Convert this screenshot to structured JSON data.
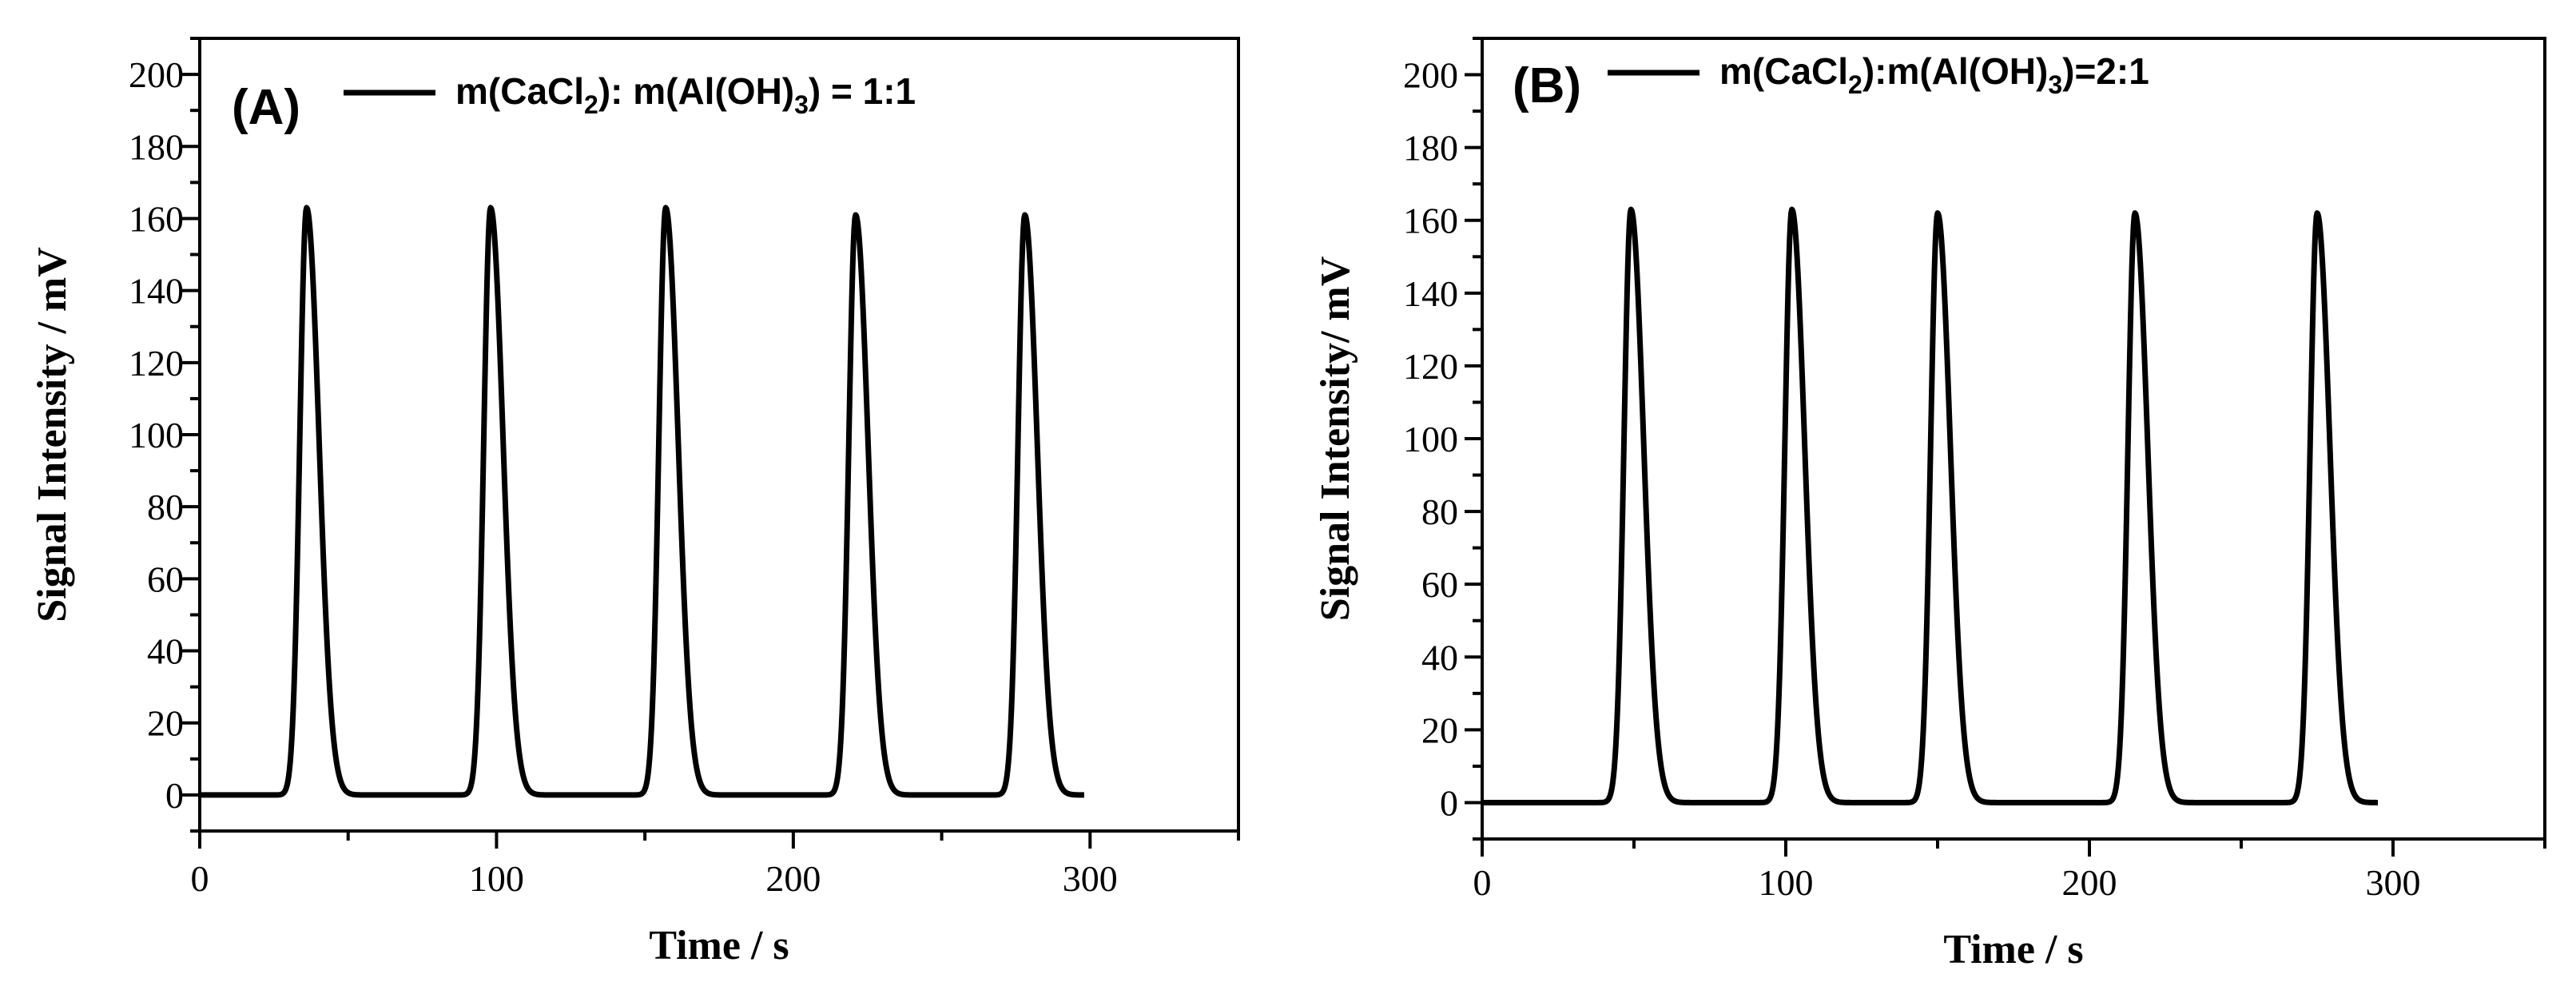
{
  "chart_data": [
    {
      "type": "line",
      "panel_label": "(A)",
      "legend": {
        "parts": [
          "m(CaCl",
          "2",
          "): m(Al(OH)",
          "3",
          ") = 1:1"
        ],
        "placement": "top-left"
      },
      "xlabel": "Time / s",
      "ylabel": "Signal Intensity / mV",
      "xlim": [
        0,
        350
      ],
      "ylim": [
        -10,
        210
      ],
      "xticks": [
        0,
        100,
        200,
        300
      ],
      "yticks": [
        0,
        20,
        40,
        60,
        80,
        100,
        120,
        140,
        160,
        180,
        200
      ],
      "series": [
        {
          "name": "m(CaCl2): m(Al(OH)3) = 1:1",
          "color": "#000000",
          "baseline": 0,
          "x_start": 0,
          "x_end": 298,
          "peaks": [
            {
              "x": 36,
              "y": 163
            },
            {
              "x": 98,
              "y": 163
            },
            {
              "x": 157,
              "y": 163
            },
            {
              "x": 221,
              "y": 161
            },
            {
              "x": 278,
              "y": 161
            }
          ]
        }
      ]
    },
    {
      "type": "line",
      "panel_label": "(B)",
      "legend": {
        "parts": [
          "m(CaCl",
          "2",
          "):m(Al(OH)",
          "3",
          ")=2:1"
        ],
        "placement": "top-left"
      },
      "xlabel": "Time / s",
      "ylabel": "Signal Intensity/ mV",
      "xlim": [
        0,
        350
      ],
      "ylim": [
        -10,
        210
      ],
      "xticks": [
        0,
        100,
        200,
        300
      ],
      "yticks": [
        0,
        20,
        40,
        60,
        80,
        100,
        120,
        140,
        160,
        180,
        200
      ],
      "series": [
        {
          "name": "m(CaCl2):m(Al(OH)3)=2:1",
          "color": "#000000",
          "baseline": 0,
          "x_start": 0,
          "x_end": 295,
          "peaks": [
            {
              "x": 49,
              "y": 163
            },
            {
              "x": 102,
              "y": 163
            },
            {
              "x": 150,
              "y": 162
            },
            {
              "x": 215,
              "y": 162
            },
            {
              "x": 275,
              "y": 162
            }
          ]
        }
      ]
    }
  ]
}
